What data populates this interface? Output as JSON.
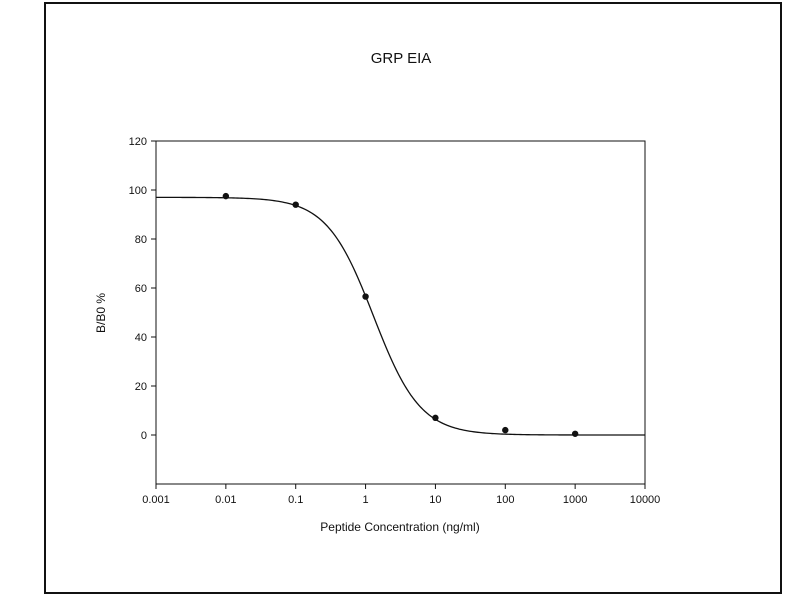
{
  "chart_data": {
    "type": "scatter",
    "title": "GRP  EIA",
    "xlabel": "Peptide Concentration (ng/ml)",
    "ylabel": "B/B0 %",
    "x_scale": "log",
    "xlim": [
      0.001,
      10000
    ],
    "ylim": [
      -20,
      120
    ],
    "x_ticks": [
      0.001,
      0.01,
      0.1,
      1,
      10,
      100,
      1000,
      10000
    ],
    "x_tick_labels": [
      "0.001",
      "0.01",
      "0.1",
      "1",
      "10",
      "100",
      "1000",
      "10000"
    ],
    "y_ticks": [
      0,
      20,
      40,
      60,
      80,
      100,
      120
    ],
    "y_tick_labels": [
      "0",
      "20",
      "40",
      "60",
      "80",
      "100",
      "120"
    ],
    "grid": false,
    "legend": "none",
    "series": [
      {
        "x": [
          0.01,
          0.1,
          1,
          10,
          100,
          1000
        ],
        "y": [
          97.5,
          94,
          56.5,
          7,
          2,
          0.5
        ]
      }
    ],
    "fit_curve": {
      "model": "4PL",
      "top": 97,
      "bottom": 0,
      "ec50": 1.3,
      "hill": 1.3
    },
    "colors": {
      "marker": "#111111",
      "line": "#111111",
      "axis": "#111111"
    }
  }
}
